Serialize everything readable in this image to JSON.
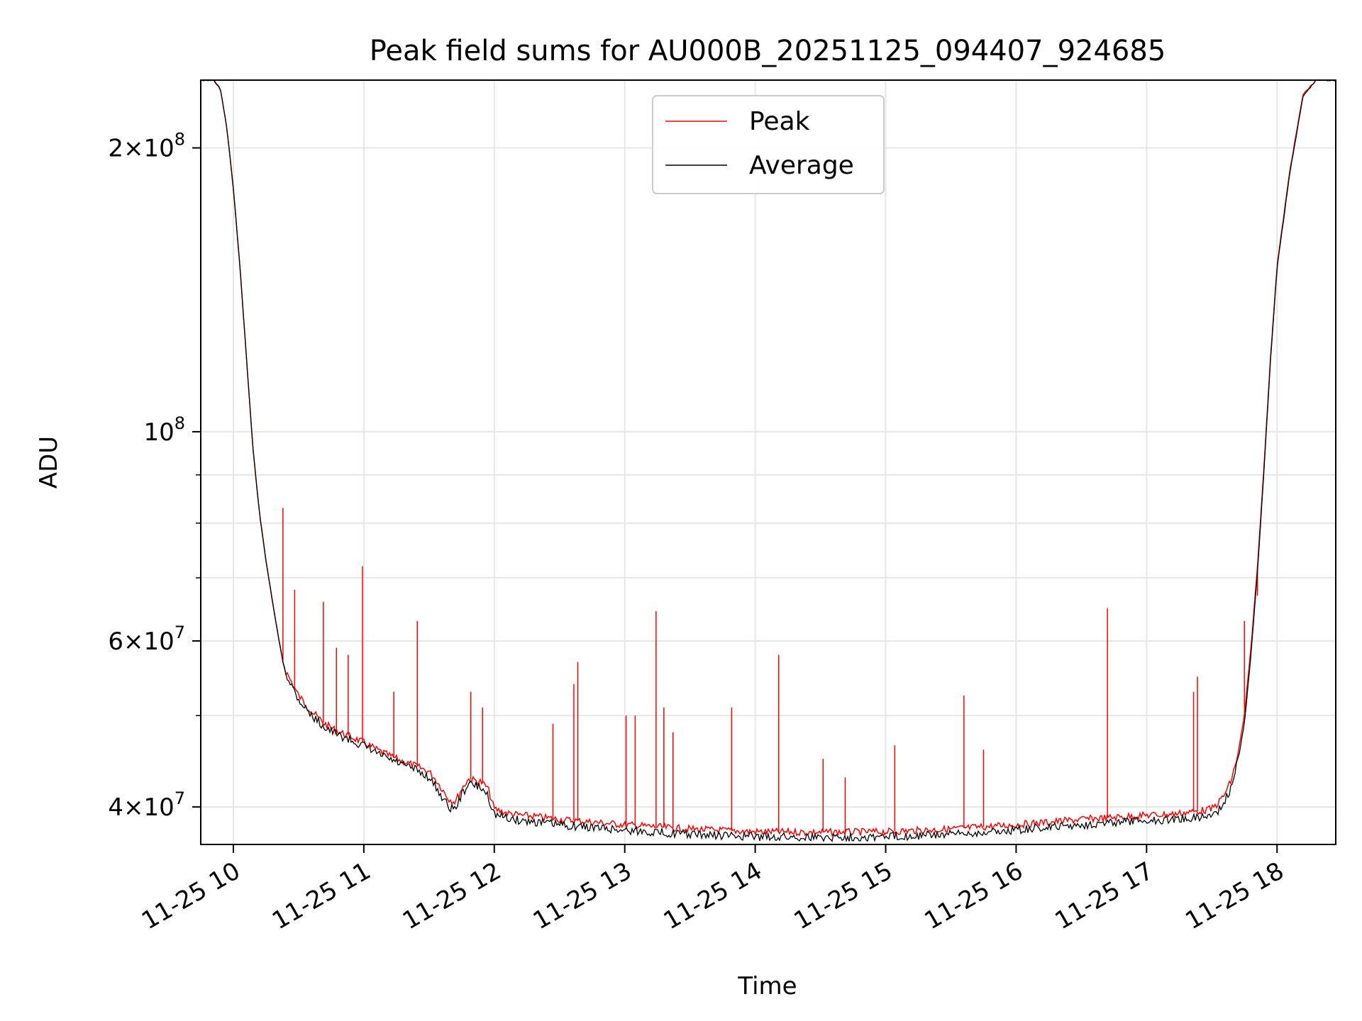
{
  "chart_data": {
    "type": "line",
    "title": "Peak field sums for AU000B_20251125_094407_924685",
    "xlabel": "Time",
    "ylabel": "ADU",
    "yscale": "log",
    "xlim": [
      9.75,
      18.45
    ],
    "ylim": [
      36500000,
      236000000
    ],
    "grid": true,
    "legend_position": "upper center",
    "x_ticks": [
      {
        "value": 10,
        "label": "11-25 10"
      },
      {
        "value": 11,
        "label": "11-25 11"
      },
      {
        "value": 12,
        "label": "11-25 12"
      },
      {
        "value": 13,
        "label": "11-25 13"
      },
      {
        "value": 14,
        "label": "11-25 14"
      },
      {
        "value": 15,
        "label": "11-25 15"
      },
      {
        "value": 16,
        "label": "11-25 16"
      },
      {
        "value": 17,
        "label": "11-25 17"
      },
      {
        "value": 18,
        "label": "11-25 18"
      }
    ],
    "y_major_ticks": [
      {
        "value": 40000000,
        "mantissa": "4",
        "exp": "7"
      },
      {
        "value": 60000000,
        "mantissa": "6",
        "exp": "7"
      },
      {
        "value": 100000000,
        "mantissa": "",
        "exp": "8"
      },
      {
        "value": 200000000,
        "mantissa": "2",
        "exp": "8"
      }
    ],
    "y_minor_ticks": [
      50000000,
      70000000,
      80000000,
      90000000
    ],
    "series": [
      {
        "name": "Peak",
        "color": "#ff0000",
        "x": [
          9.75,
          9.85,
          9.9,
          9.95,
          10.0,
          10.05,
          10.1,
          10.15,
          10.2,
          10.25,
          10.3,
          10.35,
          10.38,
          10.4,
          10.5,
          10.6,
          10.7,
          10.8,
          10.9,
          11.0,
          11.1,
          11.2,
          11.3,
          11.4,
          11.5,
          11.55,
          11.6,
          11.65,
          11.7,
          11.75,
          11.8,
          11.85,
          11.9,
          11.95,
          12.0,
          12.1,
          12.2,
          12.3,
          12.5,
          13.0,
          13.5,
          14.0,
          14.5,
          15.0,
          15.5,
          16.0,
          16.5,
          17.0,
          17.2,
          17.4,
          17.5,
          17.55,
          17.6,
          17.65,
          17.7,
          17.75,
          17.8,
          17.85,
          17.9,
          17.95,
          18.0,
          18.1,
          18.2,
          18.3,
          18.45
        ],
        "y": [
          236000000,
          236000000,
          231000000,
          210000000,
          181000000,
          150000000,
          120000000,
          96000000,
          82000000,
          73000000,
          66000000,
          60000000,
          57000000,
          55800000,
          52500000,
          50500000,
          49000000,
          48100000,
          47500000,
          46800000,
          46000000,
          45300000,
          44700000,
          44200000,
          43600000,
          42800000,
          41800000,
          40800000,
          40500000,
          41800000,
          42800000,
          42700000,
          42500000,
          41900000,
          39800000,
          39400000,
          39200000,
          39100000,
          38800000,
          38300000,
          37900000,
          37650000,
          37600000,
          37650000,
          37900000,
          38300000,
          38800000,
          39200000,
          39300000,
          39600000,
          39800000,
          40400000,
          41300000,
          42700000,
          45500000,
          50000000,
          59000000,
          72000000,
          92000000,
          120000000,
          150000000,
          190000000,
          228000000,
          236000000,
          236000000
        ]
      },
      {
        "name": "Average",
        "color": "#000000",
        "x": [
          9.75,
          9.85,
          9.9,
          9.95,
          10.0,
          10.05,
          10.1,
          10.15,
          10.2,
          10.25,
          10.3,
          10.35,
          10.38,
          10.4,
          10.5,
          10.6,
          10.7,
          10.8,
          10.9,
          11.0,
          11.1,
          11.2,
          11.3,
          11.4,
          11.5,
          11.55,
          11.6,
          11.65,
          11.7,
          11.75,
          11.8,
          11.85,
          11.9,
          11.95,
          12.0,
          12.1,
          12.2,
          12.3,
          12.5,
          13.0,
          13.5,
          14.0,
          14.5,
          15.0,
          15.5,
          16.0,
          16.5,
          17.0,
          17.2,
          17.4,
          17.5,
          17.55,
          17.6,
          17.65,
          17.7,
          17.75,
          17.8,
          17.85,
          17.9,
          17.95,
          18.0,
          18.1,
          18.2,
          18.3,
          18.45
        ],
        "y": [
          236000000,
          236000000,
          231000000,
          210000000,
          181000000,
          150000000,
          120000000,
          96000000,
          82000000,
          73000000,
          66000000,
          60000000,
          57000000,
          55500000,
          52000000,
          50000000,
          48600000,
          47700000,
          47100000,
          46400000,
          45600000,
          44900000,
          44300000,
          43800000,
          43000000,
          42000000,
          41000000,
          40000000,
          39800000,
          41200000,
          42300000,
          42200000,
          41900000,
          41200000,
          39300000,
          38900000,
          38700000,
          38600000,
          38300000,
          37800000,
          37400000,
          37200000,
          37150000,
          37200000,
          37400000,
          37800000,
          38300000,
          38700000,
          38800000,
          39000000,
          39200000,
          39700000,
          40600000,
          42000000,
          44800000,
          49000000,
          58000000,
          71000000,
          91000000,
          119000000,
          149000000,
          189000000,
          227000000,
          236000000,
          236000000
        ]
      }
    ],
    "spikes": [
      {
        "x": 10.38,
        "y": 83000000
      },
      {
        "x": 10.47,
        "y": 68000000
      },
      {
        "x": 10.69,
        "y": 66000000
      },
      {
        "x": 10.79,
        "y": 59000000
      },
      {
        "x": 10.88,
        "y": 58000000
      },
      {
        "x": 10.99,
        "y": 72000000
      },
      {
        "x": 11.23,
        "y": 53000000
      },
      {
        "x": 11.41,
        "y": 63000000
      },
      {
        "x": 11.82,
        "y": 53000000
      },
      {
        "x": 11.91,
        "y": 51000000
      },
      {
        "x": 12.45,
        "y": 49000000
      },
      {
        "x": 12.61,
        "y": 54000000
      },
      {
        "x": 12.64,
        "y": 57000000
      },
      {
        "x": 13.01,
        "y": 50000000
      },
      {
        "x": 13.08,
        "y": 50000000
      },
      {
        "x": 13.24,
        "y": 64500000
      },
      {
        "x": 13.3,
        "y": 51000000
      },
      {
        "x": 13.37,
        "y": 48000000
      },
      {
        "x": 13.82,
        "y": 51000000
      },
      {
        "x": 14.18,
        "y": 58000000
      },
      {
        "x": 14.52,
        "y": 45000000
      },
      {
        "x": 14.69,
        "y": 43000000
      },
      {
        "x": 15.07,
        "y": 46500000
      },
      {
        "x": 15.6,
        "y": 52500000
      },
      {
        "x": 15.75,
        "y": 46000000
      },
      {
        "x": 16.7,
        "y": 65000000
      },
      {
        "x": 17.36,
        "y": 53000000
      },
      {
        "x": 17.39,
        "y": 55000000
      },
      {
        "x": 17.75,
        "y": 63000000
      },
      {
        "x": 17.85,
        "y": 67000000
      }
    ]
  }
}
